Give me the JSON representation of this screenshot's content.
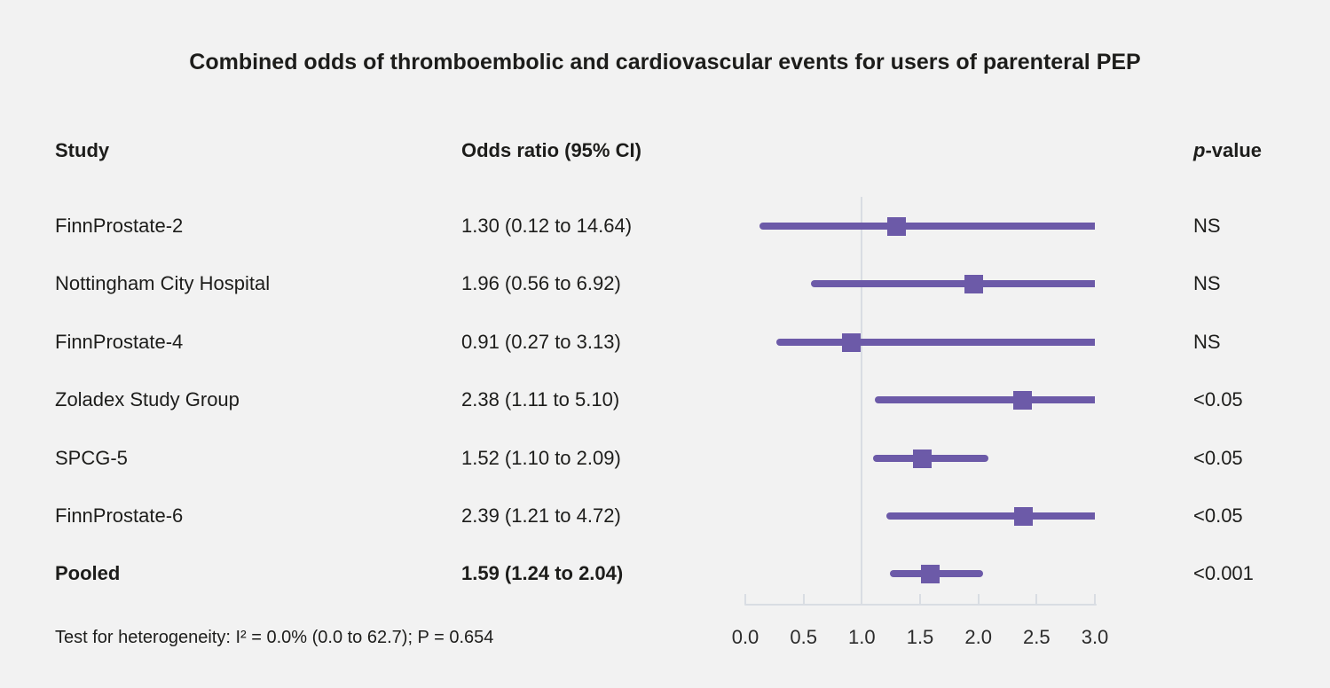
{
  "title": "Combined odds of thromboembolic and cardiovascular events for users of parenteral PEP",
  "columns": {
    "study": "Study",
    "or_ci": "Odds ratio (95% CI)",
    "p_italic": "p",
    "p_rest": "-value"
  },
  "footer": "Test for heterogeneity: I² = 0.0% (0.0 to 62.7); P = 0.654",
  "colors": {
    "background": "#f2f2f2",
    "text": "#1d1d1b",
    "purple_bar": "#6c5aa8",
    "purple_marker": "#6c5aa8",
    "axis_gray": "#d9dde3"
  },
  "chart_data": {
    "type": "forest",
    "title": "Combined odds of thromboembolic and cardiovascular events for users of parenteral PEP",
    "x_range": [
      0,
      3
    ],
    "x_ticks": [
      "0.0",
      "0.5",
      "1.0",
      "1.5",
      "2.0",
      "2.5",
      "3.0"
    ],
    "reference_line_x": 1.0,
    "rows": [
      {
        "study": "FinnProstate-2",
        "or": 1.3,
        "ci_low": 0.12,
        "ci_high": 14.64,
        "or_ci_label": "1.30 (0.12 to 14.64)",
        "p_value": "NS",
        "bold": false
      },
      {
        "study": "Nottingham City Hospital",
        "or": 1.96,
        "ci_low": 0.56,
        "ci_high": 6.92,
        "or_ci_label": "1.96 (0.56 to 6.92)",
        "p_value": "NS",
        "bold": false
      },
      {
        "study": "FinnProstate-4",
        "or": 0.91,
        "ci_low": 0.27,
        "ci_high": 3.13,
        "or_ci_label": "0.91 (0.27 to 3.13)",
        "p_value": "NS",
        "bold": false
      },
      {
        "study": "Zoladex Study Group",
        "or": 2.38,
        "ci_low": 1.11,
        "ci_high": 5.1,
        "or_ci_label": "2.38 (1.11 to 5.10)",
        "p_value": "<0.05",
        "bold": false
      },
      {
        "study": "SPCG-5",
        "or": 1.52,
        "ci_low": 1.1,
        "ci_high": 2.09,
        "or_ci_label": "1.52 (1.10 to 2.09)",
        "p_value": "<0.05",
        "bold": false
      },
      {
        "study": "FinnProstate-6",
        "or": 2.39,
        "ci_low": 1.21,
        "ci_high": 4.72,
        "or_ci_label": "2.39 (1.21 to 4.72)",
        "p_value": "<0.05",
        "bold": false
      },
      {
        "study": "Pooled",
        "or": 1.59,
        "ci_low": 1.24,
        "ci_high": 2.04,
        "or_ci_label": "1.59 (1.24 to 2.04)",
        "p_value": "<0.001",
        "bold": true
      }
    ]
  }
}
